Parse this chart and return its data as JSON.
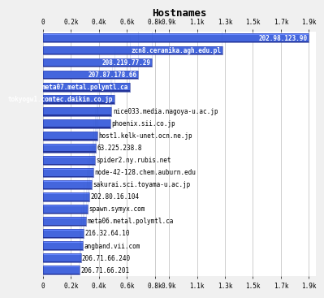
{
  "title": "Hostnames",
  "labels": [
    "202.98.123.90",
    "zcn8.ceramika.agh.edu.pl",
    "208.219.77.29",
    "207.87.178.66",
    "meta07.metal.polymtl.ca",
    "tokyogw1.comtec.daikin.co.jp",
    "nice033.media.nagoya-u.ac.jp",
    "phoenix.sii.co.jp",
    "host1.kelk-unet.ocn.ne.jp",
    "63.225.238.8",
    "spider2.ny.rubis.net",
    "node-42-128.chem.auburn.edu",
    "sakurai.sci.toyama-u.ac.jp",
    "202.80.16.104",
    "spawn.symyx.com",
    "meta06.metal.polymtl.ca",
    "216.32.64.10",
    "angband.vii.com",
    "206.71.66.240",
    "206.71.66.201"
  ],
  "values": [
    1900,
    1280,
    780,
    680,
    620,
    510,
    490,
    480,
    390,
    380,
    370,
    360,
    350,
    330,
    320,
    310,
    290,
    285,
    270,
    260
  ],
  "bar_face_color": "#4466dd",
  "bar_top_color": "#6688ff",
  "bar_bottom_color": "#223399",
  "bar_right_color": "#3355bb",
  "label_color_inside": "#ffffff",
  "label_color_outside": "#000000",
  "background_color": "#f0f0f0",
  "plot_bg_color": "#ffffff",
  "xlim": [
    0,
    1950
  ],
  "tick_positions": [
    0,
    200,
    400,
    600,
    800,
    900,
    1100,
    1300,
    1500,
    1700,
    1900
  ],
  "tick_labels": [
    "0",
    "0.2k",
    "0.4k",
    "0.6k",
    "0.8k",
    "0.9k",
    "1.1k",
    "1.3k",
    "1.5k",
    "1.7k",
    "1.9k"
  ],
  "grid_color": "#aaaaaa",
  "title_fontsize": 9,
  "label_fontsize": 5.5,
  "tick_fontsize": 5.5,
  "inside_threshold": 500
}
